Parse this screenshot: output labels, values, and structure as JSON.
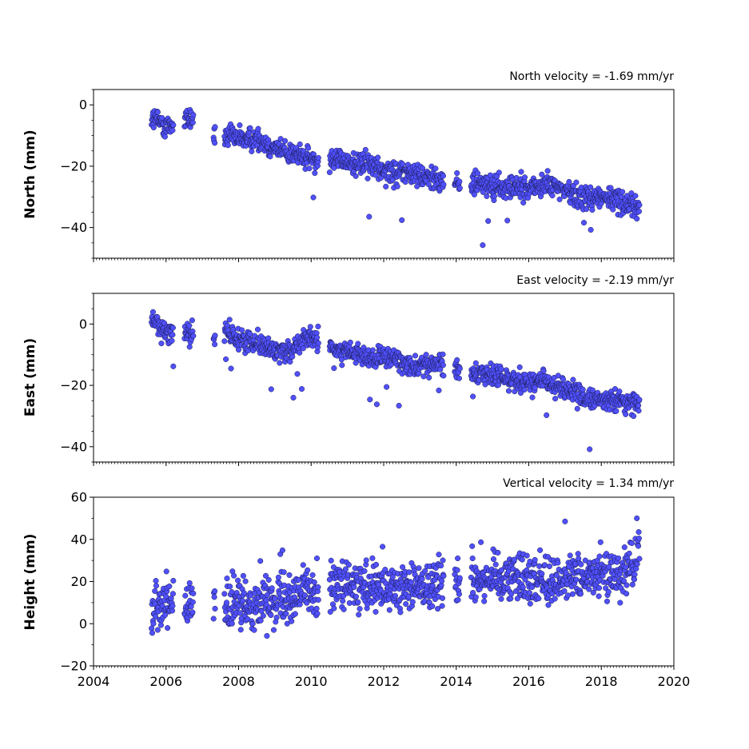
{
  "colors": {
    "marker_fill": "#5050ff",
    "marker_edge": "#1a1a4a",
    "axes": "#000000"
  },
  "chart_data": [
    {
      "type": "scatter",
      "title": "North velocity = -1.69 mm/yr",
      "ylabel": "North (mm)",
      "xlim": [
        2004,
        2020
      ],
      "ylim": [
        -50,
        5
      ],
      "yticks": [
        0,
        -20,
        -40
      ],
      "ytick_labels": [
        "0",
        "−20",
        "−40"
      ],
      "trend": {
        "ref_year": 2005.6,
        "ref_value": -4,
        "slope": -1.69
      },
      "scatter": 2.6,
      "series": [
        {
          "x": [
            2005.6,
            2006.0,
            2006.5,
            2006.8,
            2007.3,
            2008.0,
            2008.5,
            2009.0,
            2009.5,
            2010.0,
            2010.6,
            2011.0,
            2011.5,
            2012.0,
            2012.5,
            2013.0,
            2013.6,
            2014.0,
            2014.5,
            2015.0,
            2015.5,
            2016.0,
            2016.5,
            2017.0,
            2017.5,
            2018.0,
            2018.5,
            2019.0
          ],
          "y": [
            -4,
            -7,
            -5,
            -4,
            -10,
            -11,
            -11,
            -14,
            -16,
            -18,
            -17,
            -19,
            -19,
            -21,
            -22,
            -23,
            -24,
            -26,
            -25,
            -27,
            -27,
            -27,
            -26,
            -28,
            -30,
            -30,
            -31,
            -34
          ]
        }
      ]
    },
    {
      "type": "scatter",
      "title": "East velocity = -2.19 mm/yr",
      "ylabel": "East (mm)",
      "xlim": [
        2004,
        2020
      ],
      "ylim": [
        -45,
        10
      ],
      "yticks": [
        0,
        -20,
        -40
      ],
      "ytick_labels": [
        "0",
        "−20",
        "−40"
      ],
      "scatter": 2.4,
      "series": [
        {
          "x": [
            2005.6,
            2006.0,
            2006.5,
            2007.3,
            2007.7,
            2008.0,
            2008.5,
            2009.0,
            2009.5,
            2010.0,
            2010.6,
            2011.0,
            2011.5,
            2012.0,
            2012.5,
            2013.0,
            2013.6,
            2014.0,
            2014.5,
            2015.0,
            2015.5,
            2016.0,
            2016.5,
            2017.0,
            2017.5,
            2018.0,
            2018.5,
            2019.0
          ],
          "y": [
            2,
            -3,
            -2,
            -5,
            -3,
            -5,
            -6,
            -9,
            -8,
            -4,
            -8,
            -9,
            -11,
            -11,
            -12,
            -14,
            -13,
            -15,
            -15,
            -17,
            -18,
            -19,
            -19,
            -21,
            -24,
            -25,
            -25,
            -26
          ]
        }
      ]
    },
    {
      "type": "scatter",
      "title": "Vertical velocity = 1.34 mm/yr",
      "ylabel": "Height (mm)",
      "xlim": [
        2004,
        2020
      ],
      "ylim": [
        -20,
        60
      ],
      "yticks": [
        60,
        40,
        20,
        0,
        -20
      ],
      "ytick_labels": [
        "60",
        "40",
        "20",
        "0",
        "−20"
      ],
      "scatter": 8,
      "series": [
        {
          "x": [
            2005.6,
            2006.0,
            2006.5,
            2007.3,
            2007.7,
            2008.0,
            2008.5,
            2009.0,
            2009.5,
            2010.0,
            2010.6,
            2011.0,
            2011.5,
            2012.0,
            2012.5,
            2013.0,
            2013.6,
            2014.0,
            2014.5,
            2015.0,
            2015.5,
            2016.0,
            2016.5,
            2017.0,
            2017.5,
            2018.0,
            2018.5,
            2019.0
          ],
          "y": [
            8,
            12,
            8,
            8,
            8,
            9,
            10,
            12,
            14,
            16,
            18,
            17,
            16,
            16,
            17,
            18,
            20,
            20,
            22,
            22,
            24,
            21,
            20,
            22,
            22,
            23,
            25,
            28
          ]
        }
      ]
    }
  ],
  "xticks": [
    2004,
    2006,
    2008,
    2010,
    2012,
    2014,
    2016,
    2018,
    2020
  ],
  "xtick_labels": [
    "2004",
    "2006",
    "2008",
    "2010",
    "2012",
    "2014",
    "2016",
    "2018",
    "2020"
  ],
  "gaps": [
    [
      2006.2,
      2006.5
    ],
    [
      2006.75,
      2007.3
    ],
    [
      2007.35,
      2007.6
    ],
    [
      2010.2,
      2010.5
    ],
    [
      2013.65,
      2013.95
    ],
    [
      2014.1,
      2014.4
    ]
  ]
}
